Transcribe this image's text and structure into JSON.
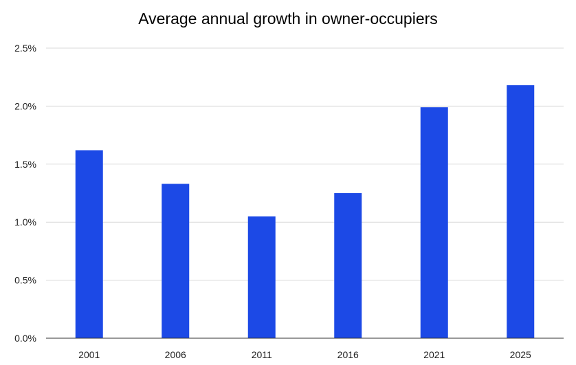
{
  "chart_data": {
    "type": "bar",
    "title": "Average annual  growth in owner-occupiers",
    "categories": [
      "2001",
      "2006",
      "2011",
      "2016",
      "2021",
      "2025"
    ],
    "series": [
      {
        "values": [
          1.62,
          1.33,
          1.05,
          1.25,
          1.99,
          2.18
        ],
        "color": "#1c49e6"
      }
    ],
    "ylim": [
      0,
      2.5
    ],
    "yticks": [
      0,
      0.5,
      1.0,
      1.5,
      2.0,
      2.5
    ],
    "ytick_labels": [
      "0.0%",
      "0.5%",
      "1.0%",
      "1.5%",
      "2.0%",
      "2.5%"
    ],
    "xlabel": "",
    "ylabel": "",
    "grid": true,
    "legend": "none"
  }
}
